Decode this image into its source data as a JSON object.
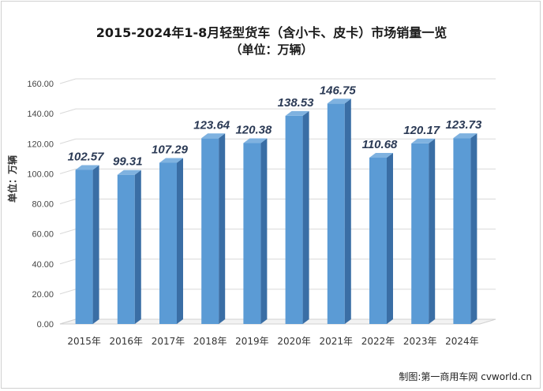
{
  "title": "2015-2024年1-8月轻型货车（含小卡、皮卡）市场销量一览",
  "subtitle": "（单位：万辆）",
  "credit": "制图:第一商用车网 cvworld.cn",
  "chart_data": {
    "type": "bar",
    "categories": [
      "2015年",
      "2016年",
      "2017年",
      "2018年",
      "2019年",
      "2020年",
      "2021年",
      "2022年",
      "2023年",
      "2024年"
    ],
    "values": [
      102.57,
      99.31,
      107.29,
      123.64,
      120.38,
      138.53,
      146.75,
      110.68,
      120.17,
      123.73
    ],
    "value_labels": [
      "102.57",
      "99.31",
      "107.29",
      "123.64",
      "120.38",
      "138.53",
      "146.75",
      "110.68",
      "120.17",
      "123.73"
    ],
    "ylabel": "单位：万辆",
    "ylim": [
      0,
      160
    ],
    "yticks": [
      "0.00",
      "20.00",
      "40.00",
      "60.00",
      "80.00",
      "100.00",
      "120.00",
      "140.00",
      "160.00"
    ],
    "grid": true,
    "colors": {
      "bar_front": "#5b9bd5",
      "bar_side": "#3a6ea5",
      "bar_top": "#7fb2e0",
      "grid": "#d9d9d9"
    }
  }
}
